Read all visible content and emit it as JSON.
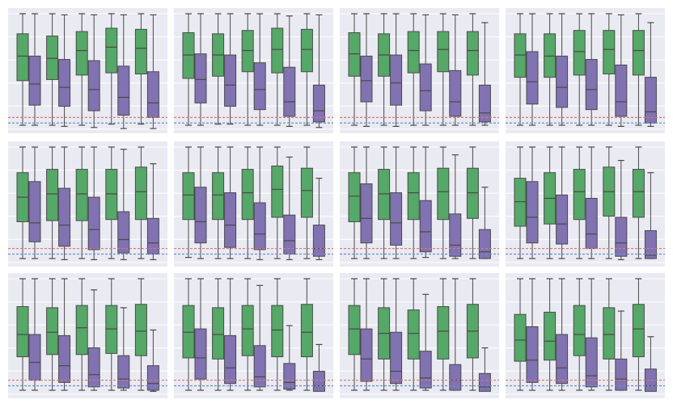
{
  "colors": {
    "green": "#55a868",
    "purple": "#8172b2",
    "edge": "#4a4a4a",
    "ref_red": "#d9777a",
    "ref_blue": "#6f8fc7",
    "background": "#eaeaf2",
    "grid": "#ffffff"
  },
  "chart_data": [
    {
      "type": "box",
      "grid": true,
      "ref_lines": [
        7,
        2
      ],
      "green": [
        [
          0,
          40,
          62,
          82,
          100
        ],
        [
          0,
          41,
          60,
          80,
          100
        ],
        [
          0,
          45,
          67,
          84,
          100
        ],
        [
          1,
          47,
          70,
          87,
          100
        ],
        [
          1,
          46,
          69,
          86,
          100
        ]
      ],
      "purple": [
        [
          0,
          18,
          37,
          62,
          100
        ],
        [
          -1,
          17,
          34,
          59,
          99
        ],
        [
          -2,
          13,
          32,
          58,
          99
        ],
        [
          -3,
          9,
          25,
          53,
          99
        ],
        [
          -3,
          7,
          20,
          48,
          99
        ]
      ]
    },
    {
      "type": "box",
      "grid": true,
      "ref_lines": [
        7,
        2
      ],
      "green": [
        [
          0,
          42,
          63,
          83,
          100
        ],
        [
          1,
          44,
          63,
          82,
          100
        ],
        [
          0,
          48,
          67,
          85,
          100
        ],
        [
          0,
          47,
          68,
          87,
          100
        ],
        [
          0,
          48,
          68,
          86,
          100
        ]
      ],
      "purple": [
        [
          0,
          20,
          41,
          64,
          100
        ],
        [
          1,
          17,
          36,
          63,
          100
        ],
        [
          0,
          14,
          32,
          56,
          100
        ],
        [
          -1,
          8,
          21,
          52,
          98
        ],
        [
          -2,
          3,
          13,
          36,
          99
        ]
      ]
    },
    {
      "type": "box",
      "grid": true,
      "ref_lines": [
        7,
        2
      ],
      "green": [
        [
          0,
          44,
          64,
          83,
          100
        ],
        [
          0,
          44,
          63,
          82,
          100
        ],
        [
          0,
          47,
          67,
          84,
          100
        ],
        [
          0,
          48,
          68,
          84,
          100
        ],
        [
          0,
          45,
          67,
          84,
          100
        ]
      ],
      "purple": [
        [
          -1,
          21,
          40,
          62,
          100
        ],
        [
          -1,
          18,
          38,
          63,
          100
        ],
        [
          0,
          13,
          31,
          55,
          99
        ],
        [
          0,
          8,
          21,
          49,
          99
        ],
        [
          0,
          3,
          11,
          36,
          92
        ]
      ]
    },
    {
      "type": "box",
      "grid": true,
      "ref_lines": [
        7,
        2
      ],
      "green": [
        [
          0,
          43,
          63,
          82,
          100
        ],
        [
          0,
          43,
          62,
          82,
          100
        ],
        [
          0,
          45,
          66,
          85,
          100
        ],
        [
          0,
          46,
          68,
          85,
          100
        ],
        [
          0,
          45,
          67,
          85,
          100
        ]
      ],
      "purple": [
        [
          0,
          19,
          39,
          66,
          100
        ],
        [
          0,
          16,
          34,
          62,
          100
        ],
        [
          0,
          14,
          32,
          59,
          100
        ],
        [
          -1,
          8,
          21,
          54,
          99
        ],
        [
          -1,
          2,
          12,
          43,
          92
        ]
      ]
    },
    {
      "type": "box",
      "grid": true,
      "ref_lines": [
        9,
        4
      ],
      "green": [
        [
          0,
          33,
          55,
          77,
          100
        ],
        [
          0,
          34,
          58,
          80,
          100
        ],
        [
          0,
          34,
          58,
          80,
          100
        ],
        [
          0,
          35,
          58,
          80,
          100
        ],
        [
          0,
          35,
          60,
          82,
          100
        ]
      ],
      "purple": [
        [
          0,
          15,
          32,
          69,
          100
        ],
        [
          -1,
          11,
          30,
          63,
          100
        ],
        [
          -1,
          8,
          26,
          55,
          100
        ],
        [
          -1,
          5,
          17,
          42,
          98
        ],
        [
          -1,
          4,
          14,
          36,
          85
        ]
      ]
    },
    {
      "type": "box",
      "grid": true,
      "ref_lines": [
        9,
        4
      ],
      "green": [
        [
          1,
          35,
          57,
          77,
          100
        ],
        [
          0,
          35,
          57,
          77,
          100
        ],
        [
          0,
          35,
          59,
          80,
          100
        ],
        [
          0,
          37,
          62,
          83,
          100
        ],
        [
          0,
          37,
          61,
          81,
          100
        ]
      ],
      "purple": [
        [
          0,
          14,
          33,
          64,
          100
        ],
        [
          0,
          10,
          30,
          59,
          100
        ],
        [
          -1,
          8,
          22,
          50,
          100
        ],
        [
          -1,
          4,
          16,
          39,
          91
        ],
        [
          -1,
          2,
          9,
          30,
          72
        ]
      ]
    },
    {
      "type": "box",
      "grid": true,
      "ref_lines": [
        9,
        4
      ],
      "green": [
        [
          0,
          33,
          56,
          77,
          100
        ],
        [
          0,
          35,
          58,
          80,
          100
        ],
        [
          0,
          35,
          59,
          77,
          100
        ],
        [
          0,
          35,
          60,
          81,
          100
        ],
        [
          0,
          36,
          59,
          81,
          100
        ]
      ],
      "purple": [
        [
          0,
          14,
          36,
          67,
          100
        ],
        [
          0,
          12,
          32,
          59,
          100
        ],
        [
          1,
          6,
          24,
          52,
          100
        ],
        [
          0,
          2,
          12,
          40,
          93
        ],
        [
          0,
          0,
          6,
          26,
          64
        ]
      ]
    },
    {
      "type": "box",
      "grid": true,
      "ref_lines": [
        9,
        4
      ],
      "green": [
        [
          0,
          29,
          51,
          72,
          100
        ],
        [
          0,
          31,
          54,
          77,
          100
        ],
        [
          0,
          35,
          60,
          80,
          100
        ],
        [
          0,
          38,
          60,
          82,
          100
        ],
        [
          0,
          37,
          60,
          80,
          100
        ]
      ],
      "purple": [
        [
          0,
          14,
          37,
          69,
          100
        ],
        [
          0,
          13,
          31,
          57,
          100
        ],
        [
          0,
          9,
          22,
          54,
          100
        ],
        [
          -1,
          2,
          14,
          37,
          88
        ],
        [
          0,
          0,
          3,
          25,
          77
        ]
      ]
    },
    {
      "type": "box",
      "grid": true,
      "ref_lines": [
        9,
        4
      ],
      "green": [
        [
          0,
          30,
          50,
          75,
          100
        ],
        [
          0,
          32,
          52,
          74,
          100
        ],
        [
          0,
          32,
          56,
          76,
          100
        ],
        [
          0,
          33,
          55,
          76,
          100
        ],
        [
          0,
          31,
          53,
          77,
          100
        ]
      ],
      "purple": [
        [
          0,
          9,
          25,
          50,
          100
        ],
        [
          0,
          7,
          22,
          49,
          100
        ],
        [
          0,
          3,
          14,
          38,
          90
        ],
        [
          0,
          2,
          10,
          31,
          74
        ],
        [
          -1,
          0,
          6,
          22,
          54
        ]
      ]
    },
    {
      "type": "box",
      "grid": true,
      "ref_lines": [
        9,
        4
      ],
      "green": [
        [
          0,
          29,
          52,
          76,
          100
        ],
        [
          0,
          28,
          50,
          74,
          100
        ],
        [
          0,
          31,
          55,
          76,
          100
        ],
        [
          0,
          30,
          54,
          76,
          100
        ],
        [
          0,
          30,
          52,
          77,
          100
        ]
      ],
      "purple": [
        [
          0,
          10,
          29,
          55,
          100
        ],
        [
          0,
          6,
          20,
          49,
          100
        ],
        [
          0,
          3,
          12,
          40,
          94
        ],
        [
          0,
          1,
          7,
          24,
          58
        ],
        [
          0,
          -1,
          4,
          17,
          41
        ]
      ]
    },
    {
      "type": "box",
      "grid": true,
      "ref_lines": [
        9,
        4
      ],
      "green": [
        [
          0,
          32,
          55,
          76,
          100
        ],
        [
          0,
          28,
          51,
          74,
          100
        ],
        [
          0,
          28,
          51,
          72,
          100
        ],
        [
          0,
          28,
          53,
          75,
          100
        ],
        [
          0,
          29,
          53,
          77,
          100
        ]
      ],
      "purple": [
        [
          0,
          8,
          28,
          55,
          100
        ],
        [
          0,
          6,
          17,
          52,
          100
        ],
        [
          0,
          2,
          11,
          35,
          86
        ],
        [
          0,
          0,
          9,
          23,
          100
        ],
        [
          0,
          -1,
          3,
          15,
          38
        ]
      ]
    },
    {
      "type": "box",
      "grid": true,
      "ref_lines": [
        9,
        4
      ],
      "green": [
        [
          0,
          26,
          45,
          68,
          100
        ],
        [
          0,
          27,
          44,
          70,
          100
        ],
        [
          0,
          31,
          50,
          76,
          100
        ],
        [
          0,
          28,
          50,
          74,
          100
        ],
        [
          0,
          30,
          55,
          77,
          100
        ]
      ],
      "purple": [
        [
          0,
          7,
          27,
          57,
          100
        ],
        [
          0,
          6,
          20,
          50,
          100
        ],
        [
          0,
          3,
          13,
          47,
          100
        ],
        [
          0,
          0,
          10,
          28,
          71
        ],
        [
          0,
          -1,
          4,
          19,
          48
        ]
      ]
    }
  ]
}
